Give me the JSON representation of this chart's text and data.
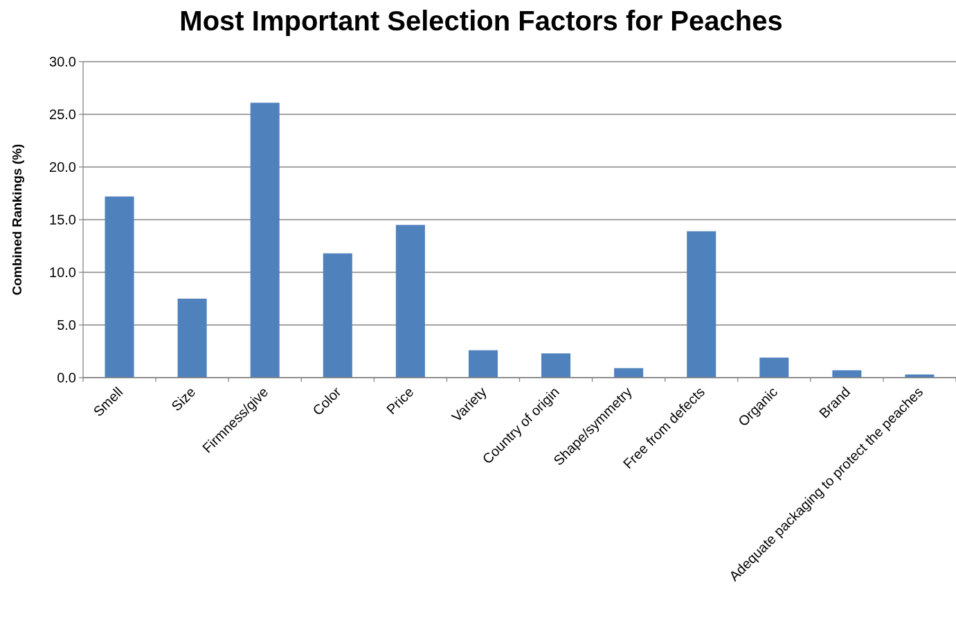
{
  "chart_data": {
    "type": "bar",
    "title": "Most Important Selection Factors for Peaches",
    "ylabel": "Combined Rankings (%)",
    "categories": [
      "Smell",
      "Size",
      "Firmness/give",
      "Color",
      "Price",
      "Variety",
      "Country of origin",
      "Shape/symmetry",
      "Free from defects",
      "Organic",
      "Brand",
      "Adequate packaging to protect the peaches"
    ],
    "values": [
      17.2,
      7.5,
      26.1,
      11.8,
      14.5,
      2.6,
      2.3,
      0.9,
      13.9,
      1.9,
      0.7,
      0.3
    ],
    "color": "#4f81bd",
    "ylim": [
      0,
      30
    ],
    "yticks": [
      {
        "value": 0,
        "label": "0.0"
      },
      {
        "value": 5,
        "label": "5.0"
      },
      {
        "value": 10,
        "label": "10.0"
      },
      {
        "value": 15,
        "label": "15.0"
      },
      {
        "value": 20,
        "label": "20.0"
      },
      {
        "value": 25,
        "label": "25.0"
      },
      {
        "value": 30,
        "label": "30.0"
      }
    ],
    "grid": "y"
  }
}
